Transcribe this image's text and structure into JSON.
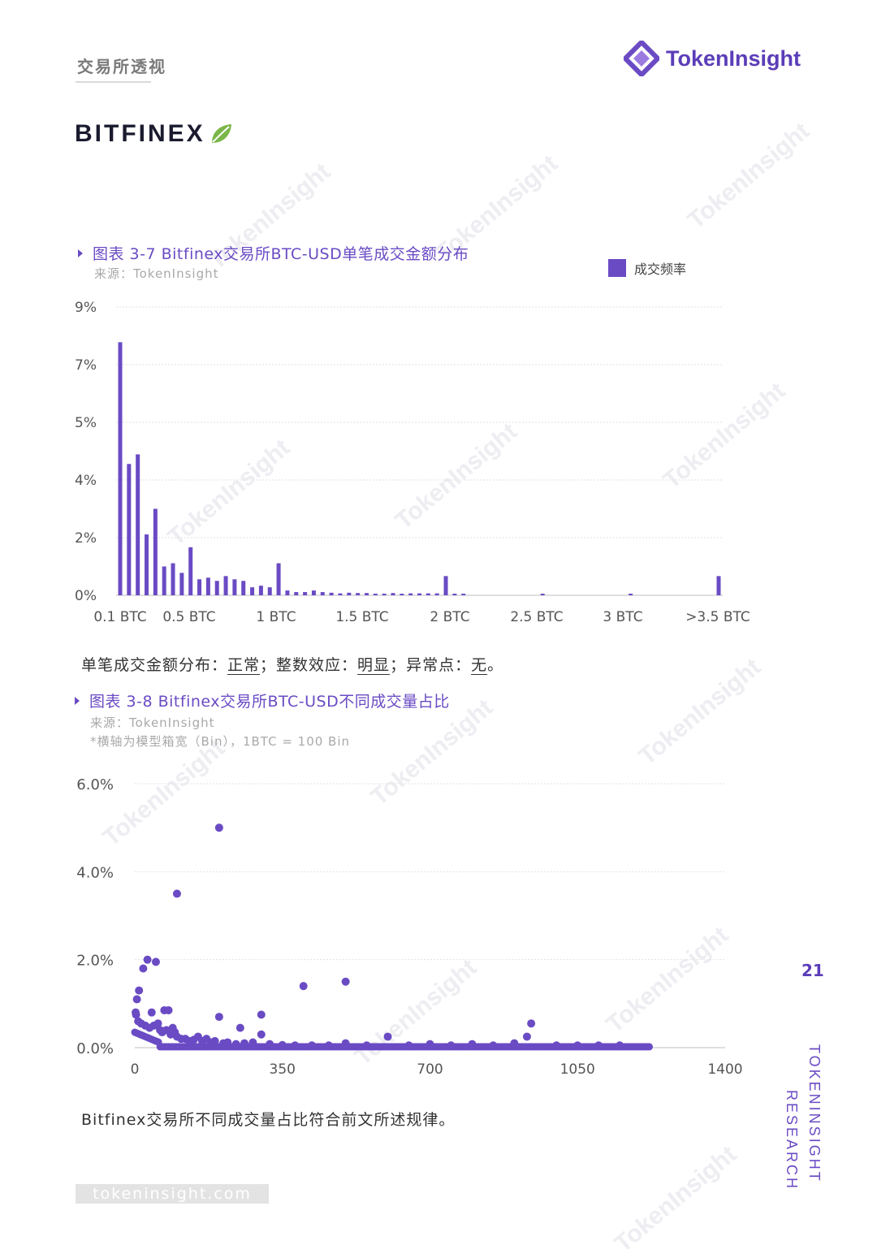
{
  "header": {
    "section_title": "交易所透视",
    "brand_name": "TokenInsight",
    "exchange_name": "BITFINEX"
  },
  "watermark": "TokenInsight",
  "colors": {
    "accent": "#6a4bc4",
    "brand": "#5b3db8",
    "leaf": "#7ab648"
  },
  "chart1": {
    "title": "图表 3-7 Bitfinex交易所BTC-USD单笔成交金额分布",
    "source": "来源：TokenInsight",
    "legend": "成交频率"
  },
  "conclusion1": {
    "p1": "单笔成交金额分布：",
    "v1": "正常",
    "p2": "；整数效应：",
    "v2": "明显",
    "p3": "；异常点：",
    "v3": "无",
    "p4": "。"
  },
  "chart2": {
    "title": "图表 3-8 Bitfinex交易所BTC-USD不同成交量占比",
    "source": "来源：TokenInsight",
    "note": "*横轴为模型箱宽（Bin），1BTC = 100 Bin"
  },
  "conclusion2": "Bitfinex交易所不同成交量占比符合前文所述规律。",
  "page_number": "21",
  "side_text_1": "TOKENINSIGHT",
  "side_text_2": "RESEARCH",
  "footer_url": "tokeninsight.com",
  "chart_data": [
    {
      "type": "bar",
      "title": "图表 3-7 Bitfinex交易所BTC-USD单笔成交金额分布",
      "series": [
        {
          "name": "成交频率",
          "values": [
            7.9,
            4.1,
            4.4,
            1.9,
            2.7,
            0.9,
            1.0,
            0.7,
            1.5,
            0.5,
            0.55,
            0.45,
            0.6,
            0.5,
            0.45,
            0.25,
            0.3,
            0.25,
            1.0,
            0.15,
            0.1,
            0.1,
            0.15,
            0.1,
            0.08,
            0.06,
            0.08,
            0.07,
            0.07,
            0.05,
            0.05,
            0.07,
            0.05,
            0.06,
            0.06,
            0.06,
            0.06,
            0.6,
            0.05,
            0.05,
            0.0,
            0.0,
            0.0,
            0.0,
            0.0,
            0.0,
            0.0,
            0.0,
            0.05,
            0.0,
            0.0,
            0.0,
            0.0,
            0.0,
            0.0,
            0.0,
            0.0,
            0.0,
            0.05,
            0.0,
            0.0,
            0.0,
            0.0,
            0.0,
            0.0,
            0.0,
            0.0,
            0.0,
            0.6
          ]
        }
      ],
      "x_tick_labels": [
        "0.1 BTC",
        "0.5 BTC",
        "1 BTC",
        "1.5 BTC",
        "2 BTC",
        "2.5 BTC",
        "3 BTC",
        ">3.5 BTC"
      ],
      "y_tick_labels": [
        "0%",
        "2%",
        "4%",
        "5%",
        "7%",
        "9%"
      ],
      "ylim": [
        0,
        9
      ],
      "grid": true,
      "legend": "top-right"
    },
    {
      "type": "scatter",
      "title": "图表 3-8 Bitfinex交易所BTC-USD不同成交量占比",
      "xlim": [
        0,
        1400
      ],
      "ylim": [
        0,
        6
      ],
      "x_ticks": [
        0,
        350,
        700,
        1050,
        1400
      ],
      "y_ticks": [
        0,
        2,
        4,
        6
      ],
      "y_tick_labels": [
        "0.0%",
        "2.0%",
        "4.0%",
        "6.0%"
      ],
      "grid": true,
      "points": [
        [
          200,
          5.0
        ],
        [
          100,
          3.5
        ],
        [
          30,
          2.0
        ],
        [
          50,
          1.95
        ],
        [
          20,
          1.8
        ],
        [
          400,
          1.4
        ],
        [
          500,
          1.5
        ],
        [
          10,
          1.3
        ],
        [
          5,
          1.1
        ],
        [
          200,
          0.7
        ],
        [
          300,
          0.75
        ],
        [
          940,
          0.55
        ],
        [
          70,
          0.85
        ],
        [
          80,
          0.85
        ],
        [
          40,
          0.8
        ],
        [
          3,
          0.75
        ],
        [
          2,
          0.8
        ],
        [
          8,
          0.6
        ],
        [
          15,
          0.55
        ],
        [
          25,
          0.5
        ],
        [
          35,
          0.45
        ],
        [
          45,
          0.5
        ],
        [
          55,
          0.55
        ],
        [
          60,
          0.4
        ],
        [
          65,
          0.35
        ],
        [
          75,
          0.4
        ],
        [
          85,
          0.3
        ],
        [
          90,
          0.45
        ],
        [
          95,
          0.35
        ],
        [
          100,
          0.25
        ],
        [
          110,
          0.2
        ],
        [
          120,
          0.2
        ],
        [
          130,
          0.15
        ],
        [
          140,
          0.18
        ],
        [
          150,
          0.25
        ],
        [
          160,
          0.15
        ],
        [
          170,
          0.2
        ],
        [
          180,
          0.12
        ],
        [
          190,
          0.15
        ],
        [
          210,
          0.1
        ],
        [
          220,
          0.12
        ],
        [
          240,
          0.08
        ],
        [
          250,
          0.45
        ],
        [
          260,
          0.1
        ],
        [
          280,
          0.12
        ],
        [
          300,
          0.3
        ],
        [
          320,
          0.08
        ],
        [
          350,
          0.06
        ],
        [
          380,
          0.05
        ],
        [
          420,
          0.05
        ],
        [
          460,
          0.05
        ],
        [
          500,
          0.1
        ],
        [
          550,
          0.05
        ],
        [
          600,
          0.25
        ],
        [
          650,
          0.05
        ],
        [
          700,
          0.08
        ],
        [
          750,
          0.05
        ],
        [
          800,
          0.08
        ],
        [
          850,
          0.05
        ],
        [
          900,
          0.1
        ],
        [
          930,
          0.25
        ],
        [
          1000,
          0.05
        ],
        [
          1050,
          0.05
        ],
        [
          1100,
          0.05
        ],
        [
          1150,
          0.05
        ]
      ]
    }
  ]
}
